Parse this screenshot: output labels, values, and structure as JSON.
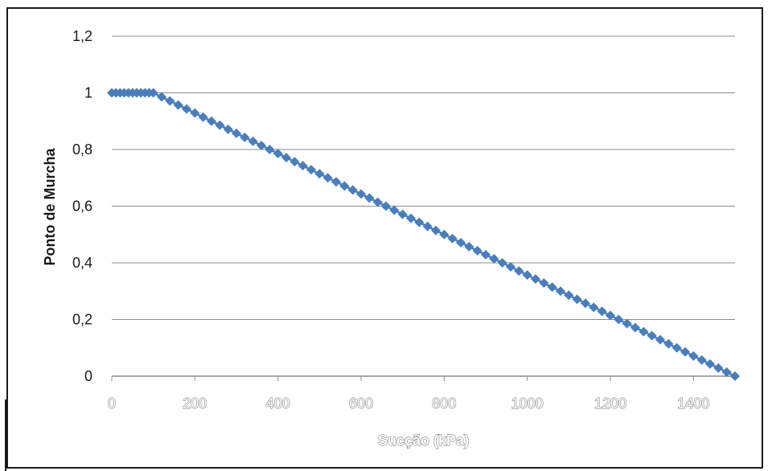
{
  "chart_data": {
    "type": "line",
    "title": "",
    "xlabel": "Sucção (kPa)",
    "ylabel": "Ponto de Murcha",
    "xlim": [
      0,
      1500
    ],
    "ylim": [
      0,
      1.2
    ],
    "x_ticks": [
      "0",
      "200",
      "400",
      "600",
      "800",
      "1000",
      "1200",
      "1400"
    ],
    "y_ticks": [
      "0",
      "0,2",
      "0,4",
      "0,6",
      "0,8",
      "1",
      "1,2"
    ],
    "grid": "horizontal",
    "legend": "none",
    "marker": "diamond",
    "series_color": "#4a7ebb",
    "series": [
      {
        "x": [
          0,
          10,
          20,
          30,
          40,
          50,
          60,
          70,
          80,
          90,
          100,
          120,
          140,
          160,
          180,
          200,
          220,
          240,
          260,
          280,
          300,
          320,
          340,
          360,
          380,
          400,
          420,
          440,
          460,
          480,
          500,
          520,
          540,
          560,
          580,
          600,
          620,
          640,
          660,
          680,
          700,
          720,
          740,
          760,
          780,
          800,
          820,
          840,
          860,
          880,
          900,
          920,
          940,
          960,
          980,
          1000,
          1020,
          1040,
          1060,
          1080,
          1100,
          1120,
          1140,
          1160,
          1180,
          1200,
          1220,
          1240,
          1260,
          1280,
          1300,
          1320,
          1340,
          1360,
          1380,
          1400,
          1420,
          1440,
          1460,
          1480,
          1500
        ],
        "y": [
          1,
          1,
          1,
          1,
          1,
          1,
          1,
          1,
          1,
          1,
          1,
          0.9857,
          0.9714,
          0.9571,
          0.9429,
          0.9286,
          0.9143,
          0.9,
          0.8857,
          0.8714,
          0.8571,
          0.8429,
          0.8286,
          0.8143,
          0.8,
          0.7857,
          0.7714,
          0.7571,
          0.7429,
          0.7286,
          0.7143,
          0.7,
          0.6857,
          0.6714,
          0.6571,
          0.6429,
          0.6286,
          0.6143,
          0.6,
          0.5857,
          0.5714,
          0.5571,
          0.5429,
          0.5286,
          0.5143,
          0.5,
          0.4857,
          0.4714,
          0.4571,
          0.4429,
          0.4286,
          0.4143,
          0.4,
          0.3857,
          0.3714,
          0.3571,
          0.3429,
          0.3286,
          0.3143,
          0.3,
          0.2857,
          0.2714,
          0.2571,
          0.2429,
          0.2286,
          0.2143,
          0.2,
          0.1857,
          0.1714,
          0.1571,
          0.1429,
          0.1286,
          0.1143,
          0.1,
          0.0857,
          0.0714,
          0.0571,
          0.0429,
          0.0286,
          0.0143,
          0
        ]
      }
    ]
  }
}
